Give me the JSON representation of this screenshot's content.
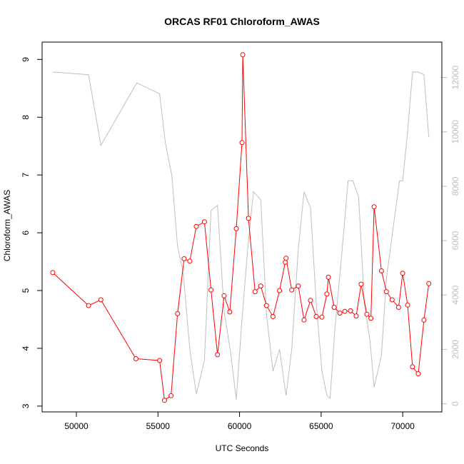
{
  "chart_data": {
    "type": "line",
    "title": "ORCAS RF01 Chloroform_AWAS",
    "xlabel": "UTC Seconds",
    "ylabel": "Chloroform_AWAS",
    "xlim": [
      47900,
      72400
    ],
    "ylim": [
      2.9,
      9.3
    ],
    "y2lim": [
      -300,
      13300
    ],
    "x_ticks": [
      50000,
      55000,
      60000,
      65000,
      70000
    ],
    "y_ticks": [
      3,
      4,
      5,
      6,
      7,
      8,
      9
    ],
    "y2_ticks": [
      0,
      2000,
      4000,
      6000,
      8000,
      10000,
      12000
    ],
    "grid": false,
    "series": [
      {
        "color": "#ff0000",
        "style": "line-with-open-circles",
        "axis": "left",
        "x": [
          48550,
          50750,
          51500,
          53650,
          55100,
          55400,
          55800,
          56200,
          56600,
          56950,
          57350,
          57850,
          58250,
          58650,
          59050,
          59400,
          59800,
          60150,
          60200,
          60550,
          60950,
          61300,
          61650,
          62050,
          62450,
          62800,
          62850,
          63200,
          63600,
          63950,
          64350,
          64700,
          65050,
          65350,
          65450,
          65800,
          66150,
          66450,
          66800,
          67150,
          67450,
          67800,
          68050,
          68250,
          68700,
          69000,
          69350,
          69750,
          70000,
          70300,
          70600,
          70950,
          71300,
          71600
        ],
        "values": [
          5.31,
          4.74,
          4.84,
          3.82,
          3.79,
          3.1,
          3.18,
          4.6,
          5.55,
          5.51,
          6.11,
          6.19,
          5.01,
          3.89,
          4.91,
          4.63,
          6.07,
          7.56,
          9.08,
          6.25,
          4.98,
          5.08,
          4.74,
          4.55,
          5.0,
          5.49,
          5.56,
          5.01,
          5.08,
          4.49,
          4.83,
          4.55,
          4.54,
          4.94,
          5.23,
          4.71,
          4.61,
          4.64,
          4.65,
          4.56,
          5.11,
          4.59,
          4.52,
          6.45,
          5.34,
          4.98,
          4.84,
          4.71,
          5.3,
          4.75,
          3.68,
          3.56,
          4.49,
          5.12
        ]
      },
      {
        "color": "#bebebe",
        "style": "line",
        "axis": "right",
        "x": [
          48550,
          50750,
          51500,
          53700,
          55100,
          55450,
          55850,
          56200,
          56550,
          56950,
          57350,
          57850,
          58250,
          58650,
          59050,
          59450,
          59800,
          60150,
          60500,
          60850,
          61300,
          61650,
          62050,
          62450,
          62850,
          63200,
          63600,
          63950,
          64350,
          64700,
          65050,
          65350,
          65550,
          65850,
          66250,
          66650,
          66950,
          67300,
          67650,
          68000,
          68250,
          68700,
          69000,
          69400,
          69800,
          70000,
          70300,
          70600,
          70950,
          71300,
          71600
        ],
        "values": [
          12200,
          12100,
          9500,
          11800,
          11400,
          9600,
          8400,
          5800,
          4800,
          2000,
          350,
          1600,
          7100,
          7300,
          3400,
          1900,
          150,
          3100,
          5700,
          7800,
          7500,
          3300,
          1200,
          2000,
          300,
          2000,
          5700,
          7800,
          7200,
          3700,
          1200,
          300,
          200,
          2800,
          5400,
          8200,
          8200,
          7600,
          3700,
          2300,
          600,
          1800,
          4600,
          6400,
          8200,
          8200,
          10000,
          12200,
          12200,
          12100,
          9800
        ]
      }
    ]
  }
}
